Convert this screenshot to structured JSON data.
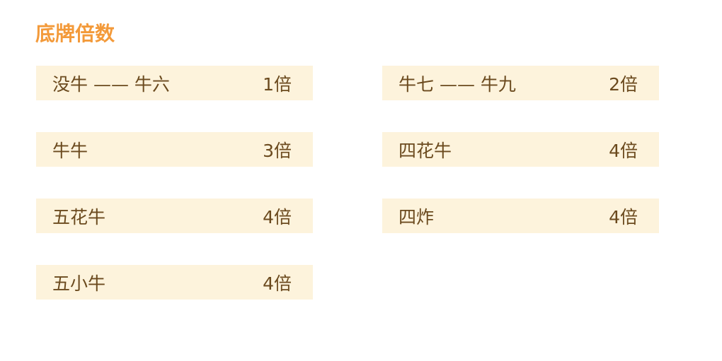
{
  "title": "底牌倍数",
  "colors": {
    "title": "#f39a3a",
    "row_bg": "#fdf3dc",
    "text": "#6b4a1e"
  },
  "items": [
    {
      "name": "没牛 —— 牛六",
      "multiplier": "1倍"
    },
    {
      "name": "牛七 —— 牛九",
      "multiplier": "2倍"
    },
    {
      "name": "牛牛",
      "multiplier": "3倍"
    },
    {
      "name": "四花牛",
      "multiplier": "4倍"
    },
    {
      "name": "五花牛",
      "multiplier": "4倍"
    },
    {
      "name": "四炸",
      "multiplier": "4倍"
    },
    {
      "name": "五小牛",
      "multiplier": "4倍"
    }
  ]
}
